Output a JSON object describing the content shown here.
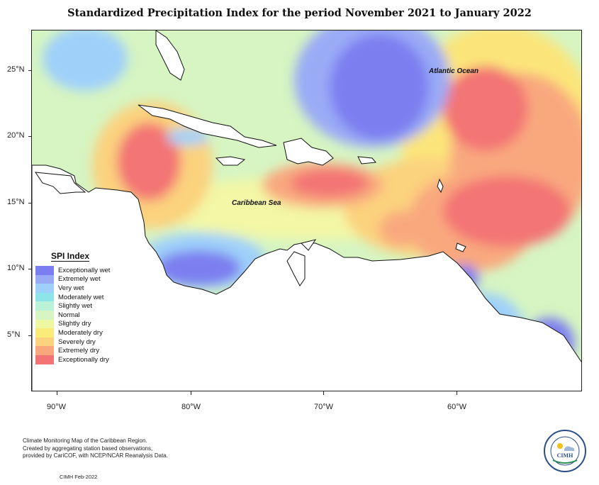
{
  "title": "Standardized Precipitation Index for the period November 2021 to January 2022",
  "map": {
    "labels": {
      "atlantic": "Atlantic Ocean",
      "caribbean": "Caribbean Sea"
    },
    "lat_ticks": [
      "25°N",
      "20°N",
      "15°N",
      "10°N",
      "5°N"
    ],
    "lon_ticks": [
      "90°W",
      "80°W",
      "70°W",
      "60°W"
    ]
  },
  "legend": {
    "title": "SPI Index",
    "items": [
      {
        "label": "Exceptionally wet",
        "color": "#7b7ef0"
      },
      {
        "label": "Extremely wet",
        "color": "#9aabf6"
      },
      {
        "label": "Very wet",
        "color": "#9fd0fa"
      },
      {
        "label": "Moderately wet",
        "color": "#8de5ea"
      },
      {
        "label": "Slightly wet",
        "color": "#b9f2d6"
      },
      {
        "label": "Normal",
        "color": "#d6f5c2"
      },
      {
        "label": "Slightly dry",
        "color": "#eef7a2"
      },
      {
        "label": "Moderately dry",
        "color": "#fbec7a"
      },
      {
        "label": "Severely dry",
        "color": "#fbd27e"
      },
      {
        "label": "Extremely dry",
        "color": "#f9a87e"
      },
      {
        "label": "Exceptionally dry",
        "color": "#f37474"
      }
    ]
  },
  "footer": {
    "lines": [
      "Climate Monitoring Map of the Caribbean Region.",
      "Created by aggregating station based observations,",
      "provided by CariCOF, with NCEP/NCAR Reanalysis Data."
    ],
    "credit": "CIMH Feb-2022"
  },
  "logo": {
    "text": "CIMH"
  }
}
